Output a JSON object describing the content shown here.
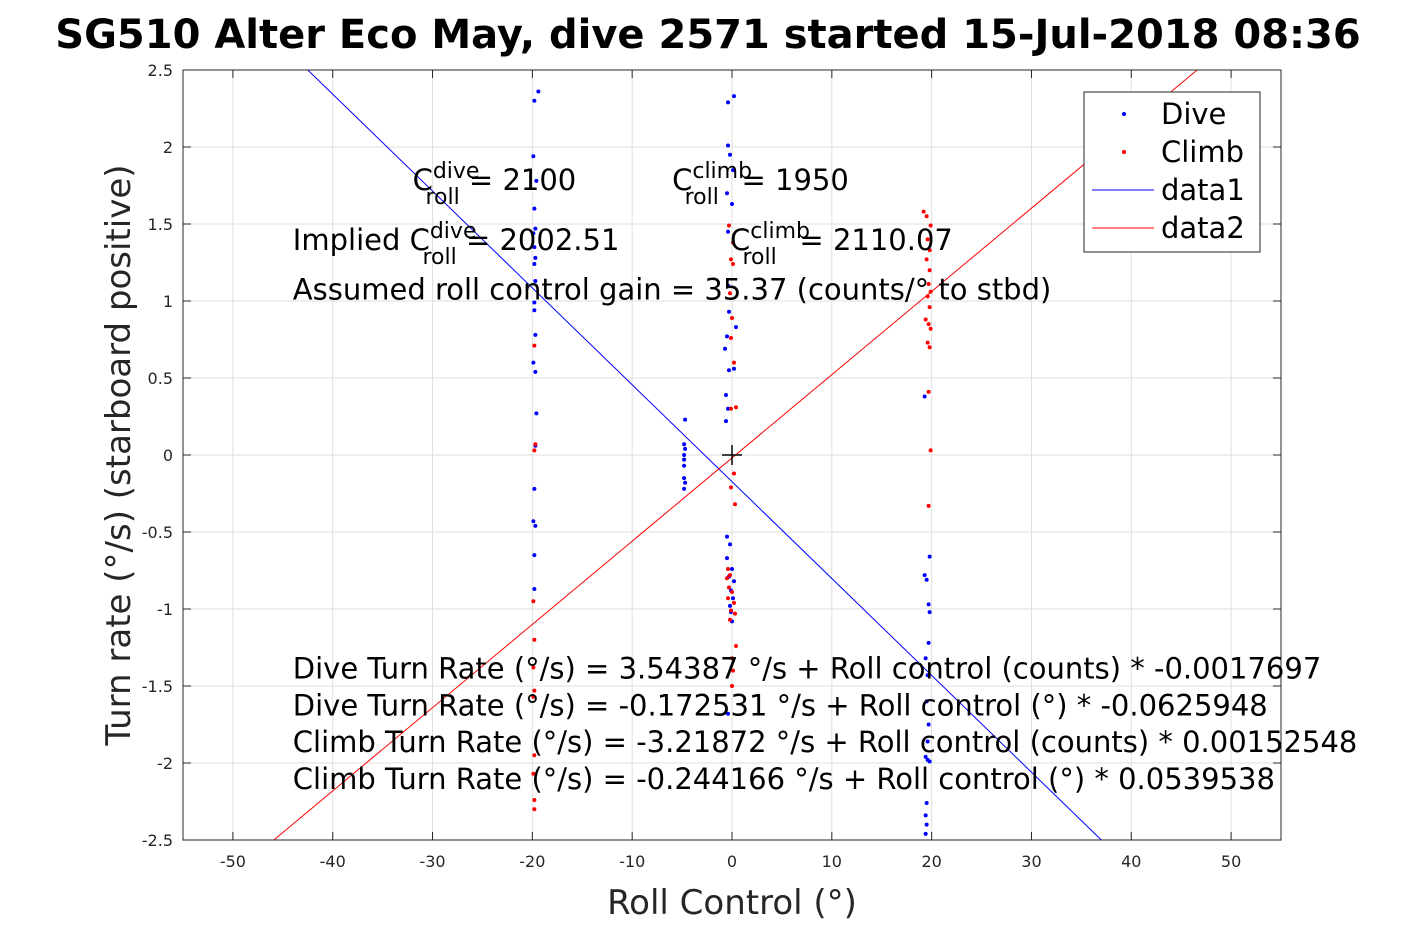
{
  "chart_data": {
    "type": "scatter",
    "title": "SG510 Alter Eco May, dive 2571 started 15-Jul-2018 08:36",
    "xlabel": "Roll Control (°)",
    "ylabel": "Turn rate (°/s) (starboard positive)",
    "xlim": [
      -55,
      55
    ],
    "ylim": [
      -2.5,
      2.5
    ],
    "xticks": [
      -50,
      -40,
      -30,
      -20,
      -10,
      0,
      10,
      20,
      30,
      40,
      50
    ],
    "yticks": [
      -2.5,
      -2,
      -1.5,
      -1,
      -0.5,
      0,
      0.5,
      1,
      1.5,
      2,
      2.5
    ],
    "xtick_labels": [
      "-50",
      "-40",
      "-30",
      "-20",
      "-10",
      "0",
      "10",
      "20",
      "30",
      "40",
      "50"
    ],
    "ytick_labels": [
      "-2.5",
      "-2",
      "-1.5",
      "-1",
      "-0.5",
      "0",
      "0.5",
      "1",
      "1.5",
      "2",
      "2.5"
    ],
    "grid": true,
    "legend_position": "top-right",
    "legend": [
      "Dive",
      "Climb",
      "data1",
      "data2"
    ],
    "colors": {
      "dive": "#0000ff",
      "climb": "#ff0000",
      "axes": "#262626",
      "grid": "#dfdfdf",
      "center": "#000000"
    },
    "series": [
      {
        "name": "Dive",
        "mode": "markers",
        "points": [
          [
            -19.8,
            2.3
          ],
          [
            -19.4,
            2.36
          ],
          [
            -19.9,
            1.94
          ],
          [
            -19.6,
            1.78
          ],
          [
            -19.8,
            1.6
          ],
          [
            -19.7,
            1.47
          ],
          [
            -19.9,
            1.44
          ],
          [
            -19.8,
            1.35
          ],
          [
            -19.7,
            1.28
          ],
          [
            -19.8,
            1.24
          ],
          [
            -19.7,
            1.13
          ],
          [
            -19.8,
            0.99
          ],
          [
            -19.8,
            0.94
          ],
          [
            -19.7,
            0.78
          ],
          [
            -19.9,
            0.6
          ],
          [
            -19.7,
            0.54
          ],
          [
            -19.6,
            0.27
          ],
          [
            -19.7,
            0.06
          ],
          [
            -19.8,
            -0.22
          ],
          [
            -19.9,
            -0.43
          ],
          [
            -19.7,
            -0.46
          ],
          [
            -19.8,
            -0.65
          ],
          [
            -19.8,
            -0.87
          ],
          [
            -4.7,
            0.23
          ],
          [
            -4.8,
            0.07
          ],
          [
            -4.7,
            0.04
          ],
          [
            -4.8,
            0.0
          ],
          [
            -4.8,
            -0.03
          ],
          [
            -4.8,
            -0.07
          ],
          [
            -4.8,
            -0.15
          ],
          [
            -4.7,
            -0.18
          ],
          [
            -4.8,
            -0.22
          ],
          [
            -0.4,
            2.29
          ],
          [
            0.2,
            2.33
          ],
          [
            -0.4,
            2.01
          ],
          [
            -0.2,
            1.95
          ],
          [
            0.1,
            1.85
          ],
          [
            -0.5,
            1.7
          ],
          [
            0.0,
            1.63
          ],
          [
            -0.4,
            1.45
          ],
          [
            -0.4,
            1.1
          ],
          [
            -0.3,
            0.93
          ],
          [
            0.4,
            0.83
          ],
          [
            -0.5,
            0.77
          ],
          [
            -0.7,
            0.69
          ],
          [
            -0.3,
            0.55
          ],
          [
            0.2,
            0.56
          ],
          [
            -0.6,
            0.39
          ],
          [
            -0.4,
            0.3
          ],
          [
            -0.6,
            0.22
          ],
          [
            -0.5,
            -0.53
          ],
          [
            -0.2,
            -0.58
          ],
          [
            -0.5,
            -0.67
          ],
          [
            0.0,
            -0.74
          ],
          [
            -0.3,
            -0.79
          ],
          [
            0.2,
            -0.82
          ],
          [
            -0.1,
            -0.88
          ],
          [
            0.1,
            -0.93
          ],
          [
            -0.2,
            -0.98
          ],
          [
            -0.1,
            -1.02
          ],
          [
            0.0,
            -1.08
          ],
          [
            -0.4,
            -1.68
          ],
          [
            19.3,
            0.38
          ],
          [
            19.8,
            -0.66
          ],
          [
            19.3,
            -0.78
          ],
          [
            19.5,
            -0.81
          ],
          [
            19.7,
            -0.97
          ],
          [
            19.8,
            -1.02
          ],
          [
            19.7,
            -1.22
          ],
          [
            19.4,
            -1.32
          ],
          [
            19.6,
            -1.43
          ],
          [
            19.5,
            -1.6
          ],
          [
            19.7,
            -1.75
          ],
          [
            19.6,
            -1.86
          ],
          [
            19.4,
            -1.96
          ],
          [
            19.6,
            -1.98
          ],
          [
            19.8,
            -1.99
          ],
          [
            19.5,
            -2.26
          ],
          [
            19.4,
            -2.34
          ],
          [
            19.5,
            -2.4
          ],
          [
            19.4,
            -2.46
          ]
        ]
      },
      {
        "name": "Climb",
        "mode": "markers",
        "points": [
          [
            -19.8,
            0.71
          ],
          [
            -19.7,
            0.07
          ],
          [
            -19.8,
            0.03
          ],
          [
            -19.9,
            -0.95
          ],
          [
            -19.8,
            -1.2
          ],
          [
            -19.9,
            -1.38
          ],
          [
            -19.8,
            -1.53
          ],
          [
            -19.9,
            -1.57
          ],
          [
            -19.8,
            -1.95
          ],
          [
            -19.9,
            -2.07
          ],
          [
            -19.8,
            -2.24
          ],
          [
            -19.8,
            -2.3
          ],
          [
            -0.3,
            1.49
          ],
          [
            0.1,
            1.38
          ],
          [
            -0.1,
            1.27
          ],
          [
            0.1,
            1.24
          ],
          [
            -0.2,
            1.05
          ],
          [
            0.0,
            0.89
          ],
          [
            -0.1,
            0.76
          ],
          [
            0.2,
            0.6
          ],
          [
            0.4,
            0.31
          ],
          [
            -0.1,
            0.3
          ],
          [
            0.2,
            -0.12
          ],
          [
            -0.1,
            -0.21
          ],
          [
            0.3,
            -0.32
          ],
          [
            -0.4,
            -0.74
          ],
          [
            -0.2,
            -0.78
          ],
          [
            -0.5,
            -0.8
          ],
          [
            -0.3,
            -0.86
          ],
          [
            0.0,
            -0.89
          ],
          [
            -0.4,
            -0.93
          ],
          [
            0.2,
            -0.96
          ],
          [
            -0.1,
            -1.01
          ],
          [
            0.3,
            -1.03
          ],
          [
            -0.2,
            -1.07
          ],
          [
            0.4,
            -1.24
          ],
          [
            0.0,
            -1.32
          ],
          [
            0.1,
            -1.4
          ],
          [
            0.0,
            -1.5
          ],
          [
            19.2,
            1.58
          ],
          [
            19.5,
            1.55
          ],
          [
            19.9,
            1.49
          ],
          [
            19.6,
            1.4
          ],
          [
            19.8,
            1.33
          ],
          [
            19.5,
            1.27
          ],
          [
            19.8,
            1.2
          ],
          [
            19.7,
            1.11
          ],
          [
            19.9,
            1.06
          ],
          [
            19.6,
            1.03
          ],
          [
            19.8,
            0.96
          ],
          [
            19.4,
            0.88
          ],
          [
            19.7,
            0.85
          ],
          [
            19.9,
            0.82
          ],
          [
            19.6,
            0.73
          ],
          [
            19.8,
            0.7
          ],
          [
            19.7,
            0.41
          ],
          [
            19.9,
            0.03
          ],
          [
            19.7,
            -0.33
          ]
        ]
      },
      {
        "name": "data1",
        "mode": "line",
        "points": [
          [
            -42.5,
            2.5
          ],
          [
            37.0,
            -2.5
          ]
        ]
      },
      {
        "name": "data2",
        "mode": "line",
        "points": [
          [
            -45.9,
            -2.5
          ],
          [
            46.6,
            2.5
          ]
        ]
      }
    ],
    "center_marker": [
      0,
      0
    ],
    "annotations": [
      {
        "x": -32,
        "y": 1.72,
        "base": "C",
        "sup": "dive",
        "sub": "roll",
        "tail": " = 2100"
      },
      {
        "x": -6,
        "y": 1.72,
        "base": "C",
        "sup": "climb",
        "sub": "roll",
        "tail": " = 1950"
      },
      {
        "x": -44,
        "y": 1.33,
        "pre": "Implied C",
        "sup": "dive",
        "sub": "roll",
        "tail": " = 2002.51"
      },
      {
        "x": -0.2,
        "y": 1.33,
        "pre": "C",
        "sup": "climb",
        "sub": "roll",
        "tail": " = 2110.07"
      },
      {
        "x": -44,
        "y": 1.01,
        "text": "Assumed roll control gain = 35.37 (counts/° to stbd)"
      },
      {
        "x": -44,
        "y": -1.45,
        "text": "Dive Turn Rate (°/s) = 3.54387 °/s + Roll control (counts) * -0.0017697"
      },
      {
        "x": -44,
        "y": -1.69,
        "text": "Dive Turn Rate (°/s) = -0.172531 °/s + Roll control (°) * -0.0625948"
      },
      {
        "x": -44,
        "y": -1.93,
        "text": "Climb Turn Rate (°/s) = -3.21872 °/s + Roll control (counts) * 0.00152548"
      },
      {
        "x": -44,
        "y": -2.17,
        "text": "Climb Turn Rate (°/s) = -0.244166 °/s + Roll control (°) * 0.0539538"
      }
    ]
  }
}
